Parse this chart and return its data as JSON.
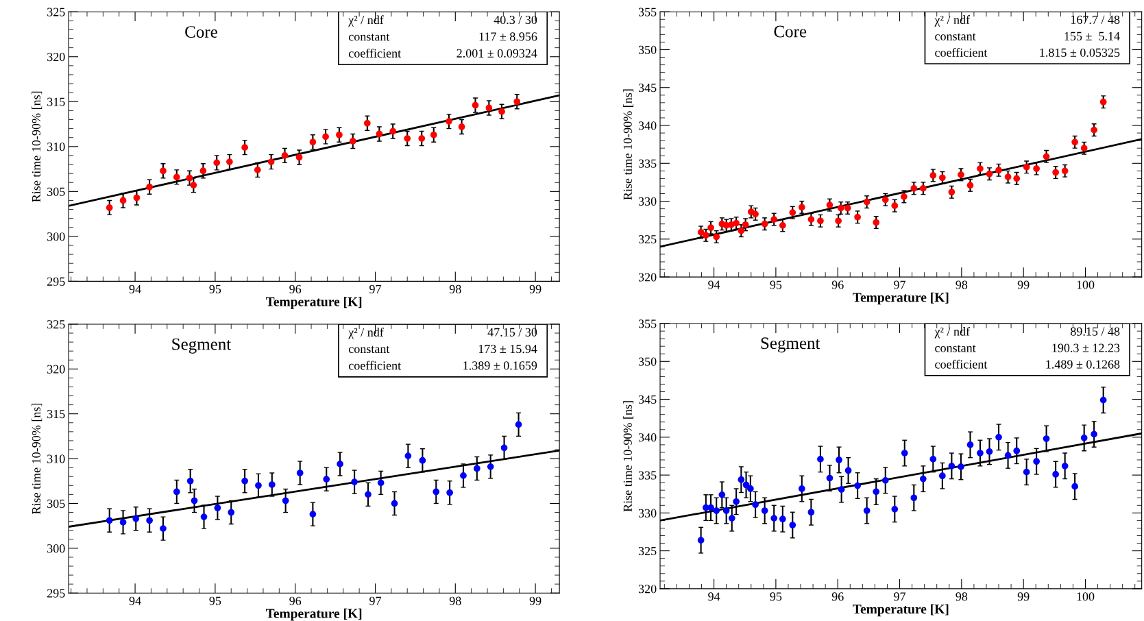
{
  "chart_data": [
    {
      "type": "scatter",
      "title": "Core",
      "xlabel": "Temperature [K]",
      "ylabel": "Rise time 10-90% [ns]",
      "xlim": [
        93.17,
        99.3
      ],
      "ylim": [
        295,
        325
      ],
      "xticks": [
        94,
        95,
        96,
        97,
        98,
        99
      ],
      "yticks": [
        295,
        300,
        305,
        310,
        315,
        320,
        325
      ],
      "grid": false,
      "legend": false,
      "annotations": [
        "χ² / ndf",
        "40.3 / 30",
        "constant",
        "117 ± 8.956",
        "coefficient",
        "2.001 ± 0.09324"
      ],
      "series": [
        {
          "marker": "circle",
          "color": "#ff0000",
          "x": [
            93.68,
            93.85,
            94.02,
            94.18,
            94.35,
            94.52,
            94.68,
            94.73,
            94.85,
            95.02,
            95.18,
            95.37,
            95.53,
            95.7,
            95.87,
            96.05,
            96.22,
            96.38,
            96.55,
            96.72,
            96.9,
            97.05,
            97.22,
            97.4,
            97.58,
            97.73,
            97.92,
            98.08,
            98.25,
            98.42,
            98.58,
            98.77
          ],
          "values": [
            303.2,
            304.0,
            304.3,
            305.5,
            307.3,
            306.6,
            306.5,
            305.7,
            307.3,
            308.2,
            308.3,
            309.9,
            307.4,
            308.3,
            309.0,
            308.8,
            310.5,
            311.1,
            311.3,
            310.6,
            312.6,
            311.4,
            311.7,
            310.9,
            310.9,
            311.3,
            312.8,
            312.2,
            314.6,
            314.3,
            313.9,
            315.0
          ],
          "errors": [
            0.8,
            0.8,
            0.8,
            0.8,
            0.8,
            0.8,
            0.8,
            0.8,
            0.8,
            0.8,
            0.8,
            0.8,
            0.8,
            0.8,
            0.8,
            0.8,
            0.8,
            0.8,
            0.8,
            0.8,
            0.8,
            0.8,
            0.8,
            0.8,
            0.8,
            0.8,
            0.8,
            0.8,
            0.8,
            0.8,
            0.8,
            0.8
          ]
        },
        {
          "type": "line",
          "color": "#000000",
          "x": [
            93.17,
            99.3
          ],
          "values": [
            303.4,
            315.7
          ]
        }
      ]
    },
    {
      "type": "scatter",
      "title": "Core",
      "xlabel": "Temperature [K]",
      "ylabel": "Rise time 10-90% [ns]",
      "xlim": [
        93.13,
        100.91
      ],
      "ylim": [
        320,
        355
      ],
      "xticks": [
        94,
        95,
        96,
        97,
        98,
        99,
        100
      ],
      "yticks": [
        320,
        325,
        330,
        335,
        340,
        345,
        350,
        355
      ],
      "grid": false,
      "legend": false,
      "annotations": [
        "χ² / ndf",
        "167.7 / 48",
        "constant",
        "155 ±  5.14",
        "coefficient",
        "1.815 ± 0.05325"
      ],
      "series": [
        {
          "marker": "circle",
          "color": "#ff0000",
          "x": [
            93.79,
            93.87,
            93.95,
            94.04,
            94.13,
            94.2,
            94.28,
            94.36,
            94.44,
            94.51,
            94.6,
            94.67,
            94.82,
            94.97,
            95.11,
            95.27,
            95.42,
            95.57,
            95.72,
            95.87,
            96.01,
            96.05,
            96.16,
            96.32,
            96.47,
            96.62,
            96.77,
            96.92,
            97.07,
            97.23,
            97.38,
            97.54,
            97.69,
            97.84,
            97.99,
            98.14,
            98.3,
            98.45,
            98.6,
            98.75,
            98.89,
            99.05,
            99.21,
            99.37,
            99.52,
            99.67,
            99.83,
            99.98,
            100.14,
            100.29
          ],
          "values": [
            325.9,
            325.5,
            326.5,
            325.3,
            327.0,
            326.8,
            326.9,
            327.1,
            326.1,
            326.9,
            328.6,
            328.3,
            327.0,
            327.6,
            326.8,
            328.5,
            329.2,
            327.6,
            327.4,
            329.5,
            327.4,
            329.1,
            329.1,
            327.9,
            329.9,
            327.2,
            330.2,
            329.4,
            330.6,
            331.7,
            331.7,
            333.4,
            333.1,
            331.2,
            333.5,
            332.1,
            334.3,
            333.6,
            334.1,
            333.2,
            333.0,
            334.5,
            334.3,
            335.9,
            333.8,
            334.0,
            337.8,
            337.0,
            339.4,
            343.1
          ],
          "errors": [
            0.8,
            0.8,
            0.8,
            0.8,
            0.8,
            0.8,
            0.8,
            0.8,
            0.8,
            0.8,
            0.8,
            0.8,
            0.8,
            0.8,
            0.8,
            0.8,
            0.8,
            0.8,
            0.8,
            0.8,
            0.8,
            0.8,
            0.8,
            0.8,
            0.8,
            0.8,
            0.8,
            0.8,
            0.8,
            0.8,
            0.8,
            0.8,
            0.8,
            0.8,
            0.8,
            0.8,
            0.8,
            0.8,
            0.8,
            0.8,
            0.8,
            0.8,
            0.8,
            0.8,
            0.8,
            0.8,
            0.8,
            0.8,
            0.8,
            0.8
          ]
        },
        {
          "type": "line",
          "color": "#000000",
          "x": [
            93.13,
            100.91
          ],
          "values": [
            324.0,
            338.2
          ]
        }
      ]
    },
    {
      "type": "scatter",
      "title": "Segment",
      "xlabel": "Temperature [K]",
      "ylabel": "Rise time 10-90% [ns]",
      "xlim": [
        93.17,
        99.3
      ],
      "ylim": [
        295,
        325
      ],
      "xticks": [
        94,
        95,
        96,
        97,
        98,
        99
      ],
      "yticks": [
        295,
        300,
        305,
        310,
        315,
        320,
        325
      ],
      "grid": false,
      "legend": false,
      "annotations": [
        "χ² / ndf",
        "47.15 / 30",
        "constant",
        "173 ± 15.94",
        "coefficient",
        "1.389 ± 0.1659"
      ],
      "series": [
        {
          "marker": "circle",
          "color": "#0000ff",
          "x": [
            93.68,
            93.85,
            94.01,
            94.18,
            94.35,
            94.52,
            94.69,
            94.74,
            94.86,
            95.03,
            95.2,
            95.37,
            95.54,
            95.71,
            95.88,
            96.06,
            96.22,
            96.39,
            96.56,
            96.74,
            96.91,
            97.07,
            97.24,
            97.41,
            97.59,
            97.76,
            97.93,
            98.1,
            98.27,
            98.44,
            98.61,
            98.79
          ],
          "values": [
            303.1,
            302.9,
            303.3,
            303.1,
            302.2,
            306.3,
            307.5,
            305.3,
            303.5,
            304.5,
            304.0,
            307.5,
            307.0,
            307.1,
            305.3,
            308.4,
            303.8,
            307.7,
            309.4,
            307.4,
            306.0,
            307.3,
            305.0,
            310.3,
            309.8,
            306.3,
            306.2,
            308.1,
            308.9,
            309.1,
            311.2,
            313.8
          ],
          "errors": [
            1.3,
            1.3,
            1.3,
            1.3,
            1.3,
            1.3,
            1.3,
            1.3,
            1.3,
            1.3,
            1.3,
            1.3,
            1.3,
            1.3,
            1.3,
            1.3,
            1.3,
            1.3,
            1.3,
            1.3,
            1.3,
            1.3,
            1.3,
            1.3,
            1.3,
            1.3,
            1.3,
            1.3,
            1.3,
            1.3,
            1.3,
            1.3
          ]
        },
        {
          "type": "line",
          "color": "#000000",
          "x": [
            93.17,
            99.3
          ],
          "values": [
            302.4,
            310.9
          ]
        }
      ]
    },
    {
      "type": "scatter",
      "title": "Segment",
      "xlabel": "Temperature [K]",
      "ylabel": "Rise time 10-90% [ns]",
      "xlim": [
        93.13,
        100.91
      ],
      "ylim": [
        320,
        355
      ],
      "xticks": [
        94,
        95,
        96,
        97,
        98,
        99,
        100
      ],
      "yticks": [
        320,
        325,
        330,
        335,
        340,
        345,
        350,
        355
      ],
      "grid": false,
      "legend": false,
      "annotations": [
        "χ² / ndf",
        "89.15 / 48",
        "constant",
        "190.3 ± 12.23",
        "coefficient",
        "1.489 ± 0.1268"
      ],
      "series": [
        {
          "marker": "circle",
          "color": "#0000ff",
          "x": [
            93.79,
            93.87,
            93.95,
            94.04,
            94.13,
            94.2,
            94.29,
            94.36,
            94.44,
            94.52,
            94.59,
            94.67,
            94.82,
            94.97,
            95.11,
            95.27,
            95.42,
            95.57,
            95.72,
            95.87,
            96.02,
            96.06,
            96.17,
            96.32,
            96.47,
            96.62,
            96.77,
            96.92,
            97.08,
            97.23,
            97.38,
            97.54,
            97.69,
            97.84,
            97.99,
            98.14,
            98.3,
            98.45,
            98.6,
            98.75,
            98.89,
            99.05,
            99.21,
            99.37,
            99.52,
            99.67,
            99.83,
            99.98,
            100.14,
            100.29
          ],
          "values": [
            326.4,
            330.7,
            330.7,
            330.3,
            332.4,
            330.3,
            329.3,
            331.5,
            334.4,
            333.7,
            333.2,
            331.1,
            330.3,
            329.3,
            329.2,
            328.4,
            333.2,
            330.1,
            337.1,
            334.6,
            337.0,
            333.1,
            335.6,
            333.6,
            330.3,
            332.8,
            334.3,
            330.5,
            337.9,
            332.0,
            334.5,
            337.1,
            334.9,
            336.2,
            336.1,
            339.0,
            337.9,
            338.1,
            340.0,
            337.6,
            338.2,
            335.4,
            336.8,
            339.8,
            335.1,
            336.2,
            333.5,
            339.9,
            340.4,
            344.9
          ],
          "errors": [
            1.7,
            1.7,
            1.7,
            1.7,
            1.7,
            1.7,
            1.7,
            1.7,
            1.7,
            1.7,
            1.7,
            1.7,
            1.7,
            1.7,
            1.7,
            1.7,
            1.7,
            1.7,
            1.7,
            1.7,
            1.7,
            1.7,
            1.7,
            1.7,
            1.7,
            1.7,
            1.7,
            1.7,
            1.7,
            1.7,
            1.7,
            1.7,
            1.7,
            1.7,
            1.7,
            1.7,
            1.7,
            1.7,
            1.7,
            1.7,
            1.7,
            1.7,
            1.7,
            1.7,
            1.7,
            1.7,
            1.7,
            1.7,
            1.7,
            1.7
          ]
        },
        {
          "type": "line",
          "color": "#000000",
          "x": [
            93.13,
            100.91
          ],
          "values": [
            329.0,
            340.5
          ]
        }
      ]
    }
  ]
}
